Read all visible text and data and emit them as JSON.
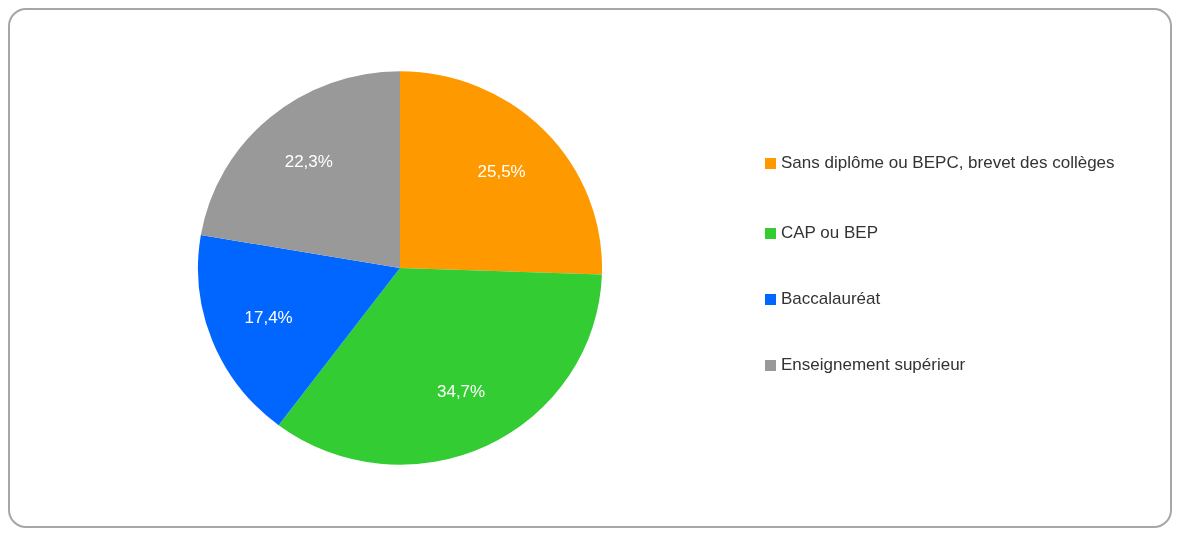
{
  "chart_data": {
    "type": "pie",
    "categories": [
      "Sans diplôme ou BEPC, brevet des collèges",
      "CAP ou BEP",
      "Baccalauréat",
      "Enseignement supérieur"
    ],
    "values": [
      25.5,
      34.7,
      17.4,
      22.3
    ],
    "colors": [
      "#ff9900",
      "#33cc33",
      "#0066ff",
      "#999999"
    ],
    "value_labels": [
      "25,5%",
      "34,7%",
      "17,4%",
      "22,3%"
    ],
    "legend": "right"
  }
}
